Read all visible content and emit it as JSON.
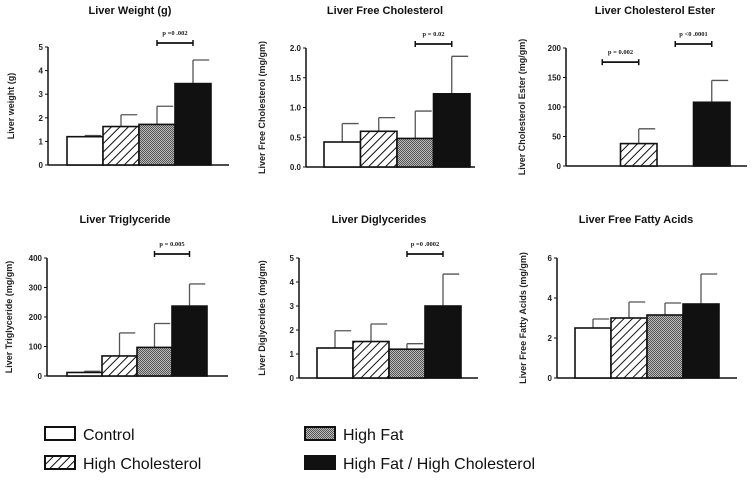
{
  "chart_data": [
    {
      "type": "bar",
      "title": "Liver Weight (g)",
      "ylabel": "Liver weight (g)",
      "ylim": [
        0,
        5
      ],
      "yticks": [
        "0",
        "1",
        "2",
        "3",
        "4",
        "5"
      ],
      "categories": [
        "Control",
        "High Cholesterol",
        "High Fat",
        "High Fat / High Cholesterol"
      ],
      "values": [
        1.2,
        1.63,
        1.72,
        3.45
      ],
      "errors": [
        0.05,
        0.5,
        0.77,
        1.0
      ],
      "annotations": [
        {
          "from": 2,
          "to": 3,
          "text": "p =0 .002"
        }
      ]
    },
    {
      "type": "bar",
      "title": "Liver Free Cholesterol",
      "ylabel": "Liver Free Cholesterol (mg/gm)",
      "ylim": [
        0,
        2
      ],
      "yticks": [
        "0.0",
        "0.5",
        "1.0",
        "1.5",
        "2.0"
      ],
      "categories": [
        "Control",
        "High Cholesterol",
        "High Fat",
        "High Fat / High Cholesterol"
      ],
      "values": [
        0.42,
        0.6,
        0.48,
        1.23
      ],
      "errors": [
        0.31,
        0.23,
        0.46,
        0.63
      ],
      "annotations": [
        {
          "from": 2,
          "to": 3,
          "text": "p = 0.02"
        }
      ]
    },
    {
      "type": "bar",
      "title": "Liver Cholesterol Ester",
      "ylabel": "Liver Cholesterol Ester (mg/gm)",
      "ylim": [
        0,
        200
      ],
      "yticks": [
        "0",
        "50",
        "100",
        "150",
        "200"
      ],
      "categories": [
        "Control",
        "High Cholesterol",
        "High Fat",
        "High Fat / High Cholesterol"
      ],
      "values": [
        0,
        38,
        0,
        108
      ],
      "errors": [
        0,
        25,
        0,
        37
      ],
      "annotations": [
        {
          "from": 0,
          "to": 1,
          "text": "p = 0.002",
          "level": 0.88
        },
        {
          "from": 2,
          "to": 3,
          "text": "p <0 .0001"
        }
      ]
    },
    {
      "type": "bar",
      "title": "Liver Triglyceride",
      "ylabel": "Liver Triglyceride (mg/gm)",
      "ylim": [
        0,
        400
      ],
      "yticks": [
        "0",
        "100",
        "200",
        "300",
        "400"
      ],
      "categories": [
        "Control",
        "High Cholesterol",
        "High Fat",
        "High Fat / High Cholesterol"
      ],
      "values": [
        12,
        68,
        97,
        237
      ],
      "errors": [
        4,
        78,
        81,
        75
      ],
      "annotations": [
        {
          "from": 2,
          "to": 3,
          "text": "p = 0.005"
        }
      ]
    },
    {
      "type": "bar",
      "title": "Liver Diglycerides",
      "ylabel": "Liver Diglycerides (mg/gm)",
      "ylim": [
        0,
        5
      ],
      "yticks": [
        "0",
        "1",
        "2",
        "3",
        "4",
        "5"
      ],
      "categories": [
        "Control",
        "High Cholesterol",
        "High Fat",
        "High Fat / High Cholesterol"
      ],
      "values": [
        1.25,
        1.52,
        1.2,
        3.0
      ],
      "errors": [
        0.72,
        0.73,
        0.23,
        1.33
      ],
      "annotations": [
        {
          "from": 2,
          "to": 3,
          "text": "p =0 .0002"
        }
      ]
    },
    {
      "type": "bar",
      "title": "Liver Free Fatty Acids",
      "ylabel": "Liver Free Fatty Acids (mg/gm)",
      "ylim": [
        0,
        6
      ],
      "yticks": [
        "0",
        "2",
        "4",
        "6"
      ],
      "categories": [
        "Control",
        "High Cholesterol",
        "High Fat",
        "High Fat / High Cholesterol"
      ],
      "values": [
        2.5,
        3.0,
        3.15,
        3.7
      ],
      "errors": [
        0.45,
        0.8,
        0.6,
        1.5
      ],
      "annotations": []
    }
  ],
  "legend": {
    "placement": "bottom",
    "items": [
      "Control",
      "High Cholesterol",
      "High Fat",
      "High Fat / High Cholesterol"
    ]
  }
}
